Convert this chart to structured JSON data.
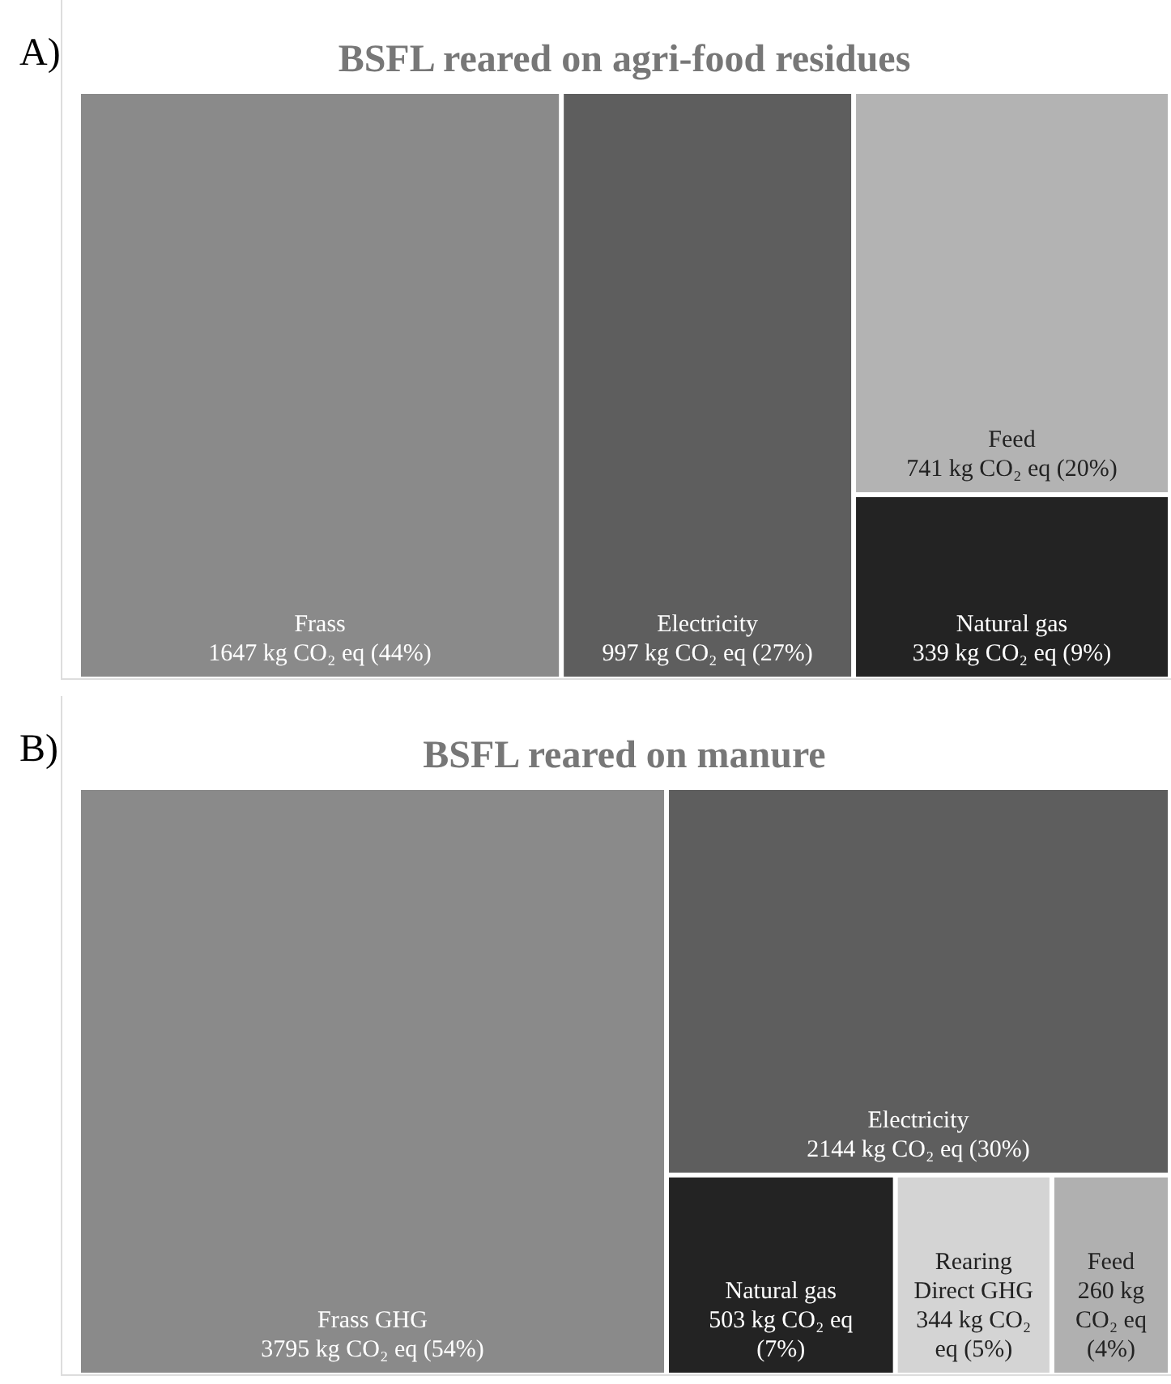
{
  "chart_data": [
    {
      "type": "other",
      "title": "BSFL reared on agri-food residues",
      "annotations": [
        "A)"
      ],
      "categories": [
        "Frass",
        "Electricity",
        "Feed",
        "Natural gas"
      ],
      "values": [
        1647,
        997,
        741,
        339
      ],
      "value_labels": [
        "1647 kg CO₂ eq (44%)",
        "997 kg CO₂ eq (27%)",
        "741 kg CO₂ eq (20%)",
        "339 kg CO₂ eq (9%)"
      ],
      "colors": [
        "#8a8a8a",
        "#5e5e5e",
        "#b3b3b3",
        "#232323"
      ]
    },
    {
      "type": "other",
      "title": "BSFL reared on manure",
      "annotations": [
        "B)"
      ],
      "categories": [
        "Frass GHG",
        "Electricity",
        "Natural gas",
        "Rearing Direct GHG",
        "Feed"
      ],
      "values": [
        3795,
        2144,
        503,
        344,
        260
      ],
      "value_labels": [
        "3795 kg CO₂ eq (54%)",
        "2144 kg CO₂ eq (30%)",
        "503 kg CO₂ eq (7%)",
        "344 kg CO₂ eq (5%)",
        "260 kg CO₂ eq (4%)"
      ],
      "colors": [
        "#8a8a8a",
        "#5e5e5e",
        "#232323",
        "#d4d4d4",
        "#b0b0b0"
      ]
    }
  ]
}
